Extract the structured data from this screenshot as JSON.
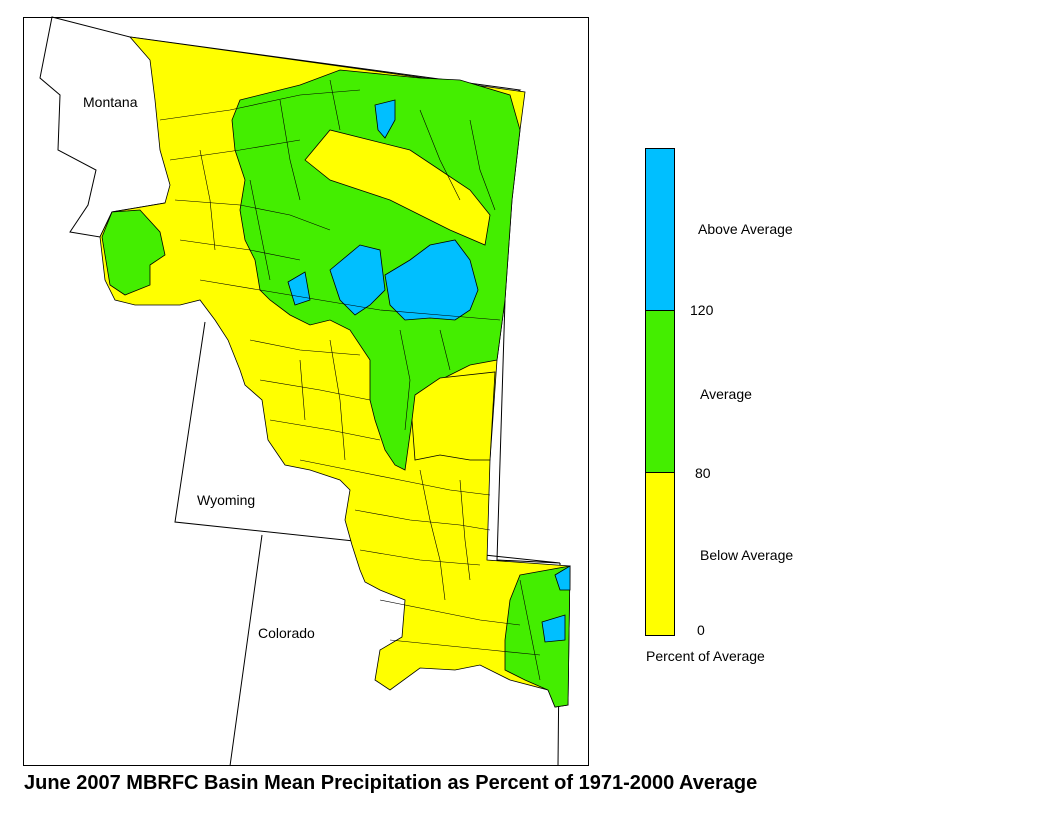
{
  "map": {
    "states": [
      {
        "name": "Montana"
      },
      {
        "name": "Wyoming"
      },
      {
        "name": "Colorado"
      }
    ]
  },
  "legend": {
    "unit_label": "Percent of Average",
    "categories": [
      {
        "label": "Above Average",
        "color": "#00bfff",
        "range": [
          120,
          null
        ]
      },
      {
        "label": "Average",
        "color": "#44ee00",
        "range": [
          80,
          120
        ]
      },
      {
        "label": "Below Average",
        "color": "#ffff00",
        "range": [
          0,
          80
        ]
      }
    ],
    "ticks": [
      "120",
      "80",
      "0"
    ]
  },
  "colors": {
    "above": "#00bfff",
    "average": "#44ee00",
    "below": "#ffff00",
    "outline": "#000000"
  },
  "title": "June 2007 MBRFC Basin Mean Precipitation as Percent of 1971-2000 Average"
}
